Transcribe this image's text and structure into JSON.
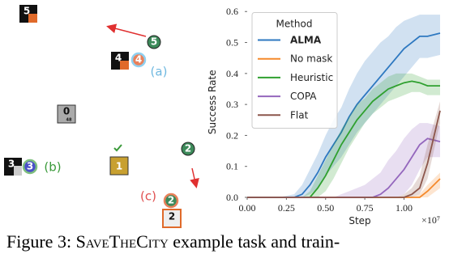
{
  "diagram": {
    "boxes": [
      "5",
      "4",
      "0",
      "48",
      "3",
      "1",
      "2"
    ],
    "agents": [
      "5",
      "4",
      "3",
      "2",
      "2"
    ],
    "labels": [
      "(a)",
      "(b)",
      "(c)"
    ]
  },
  "caption": {
    "prefix": "Figure 3: ",
    "name": "SaveTheCity",
    "rest": " example task and train-"
  },
  "chart_data": {
    "type": "line",
    "xlabel": "Step",
    "ylabel": "Success Rate",
    "x_offset_label": "×10⁷",
    "legend_title": "Method",
    "legend": "upper left",
    "xlim": [
      0,
      1.23
    ],
    "ylim": [
      0,
      0.615
    ],
    "xticks": [
      {
        "value": 0,
        "label": "0.00"
      },
      0.25,
      {
        "value": 0.5,
        "label": "0.50"
      },
      0.75,
      {
        "value": 1,
        "label": "1.00"
      }
    ],
    "yticks": [
      {
        "value": 0,
        "label": "0.0"
      },
      0.1,
      0.2,
      0.3,
      0.4,
      0.5,
      0.6
    ],
    "x": [
      0,
      0.1,
      0.2,
      0.3,
      0.35,
      0.4,
      0.45,
      0.5,
      0.55,
      0.6,
      0.65,
      0.7,
      0.75,
      0.8,
      0.85,
      0.9,
      0.95,
      1.0,
      1.05,
      1.1,
      1.15,
      1.23
    ],
    "series": [
      {
        "name": "ALMA",
        "color": "#2e78c0",
        "bold": true,
        "values": [
          0,
          0,
          0,
          0,
          0.01,
          0.04,
          0.08,
          0.13,
          0.17,
          0.21,
          0.26,
          0.3,
          0.33,
          0.36,
          0.39,
          0.42,
          0.45,
          0.48,
          0.5,
          0.52,
          0.52,
          0.53
        ],
        "upper": [
          0,
          0,
          0,
          0.01,
          0.04,
          0.09,
          0.14,
          0.2,
          0.25,
          0.29,
          0.35,
          0.4,
          0.44,
          0.47,
          0.5,
          0.52,
          0.55,
          0.57,
          0.58,
          0.59,
          0.59,
          0.59
        ],
        "lower": [
          0,
          0,
          0,
          0,
          0,
          0.01,
          0.03,
          0.07,
          0.1,
          0.13,
          0.17,
          0.21,
          0.24,
          0.27,
          0.3,
          0.33,
          0.36,
          0.39,
          0.42,
          0.45,
          0.45,
          0.46
        ]
      },
      {
        "name": "No mask",
        "color": "#f5892a",
        "bold": false,
        "values": [
          0,
          0,
          0,
          0,
          0,
          0,
          0,
          0,
          0,
          0,
          0,
          0,
          0,
          0,
          0,
          0,
          0,
          0,
          0,
          0,
          0.02,
          0.06
        ],
        "upper": [
          0,
          0,
          0,
          0,
          0,
          0,
          0,
          0,
          0,
          0,
          0,
          0,
          0,
          0,
          0,
          0,
          0,
          0,
          0,
          0.01,
          0.04,
          0.08
        ],
        "lower": [
          0,
          0,
          0,
          0,
          0,
          0,
          0,
          0,
          0,
          0,
          0,
          0,
          0,
          0,
          0,
          0,
          0,
          0,
          0,
          0,
          0,
          0.03
        ]
      },
      {
        "name": "Heuristic",
        "color": "#2fa02f",
        "bold": false,
        "values": [
          0,
          0,
          0,
          0,
          0,
          0,
          0.03,
          0.07,
          0.12,
          0.17,
          0.21,
          0.25,
          0.28,
          0.31,
          0.33,
          0.35,
          0.36,
          0.37,
          0.375,
          0.37,
          0.36,
          0.36
        ],
        "upper": [
          0,
          0,
          0,
          0,
          0,
          0.02,
          0.07,
          0.12,
          0.17,
          0.22,
          0.26,
          0.3,
          0.32,
          0.35,
          0.37,
          0.39,
          0.4,
          0.4,
          0.4,
          0.39,
          0.38,
          0.38
        ],
        "lower": [
          0,
          0,
          0,
          0,
          0,
          0,
          0,
          0.02,
          0.06,
          0.11,
          0.16,
          0.2,
          0.24,
          0.27,
          0.29,
          0.31,
          0.32,
          0.33,
          0.34,
          0.34,
          0.33,
          0.33
        ]
      },
      {
        "name": "COPA",
        "color": "#9467bd",
        "bold": false,
        "values": [
          0,
          0,
          0,
          0,
          0,
          0,
          0,
          0,
          0,
          0,
          0,
          0,
          0,
          0,
          0.01,
          0.03,
          0.06,
          0.09,
          0.13,
          0.17,
          0.19,
          0.18
        ],
        "upper": [
          0,
          0,
          0,
          0,
          0,
          0,
          0,
          0,
          0,
          0.01,
          0.02,
          0.03,
          0.04,
          0.06,
          0.08,
          0.12,
          0.15,
          0.19,
          0.22,
          0.24,
          0.24,
          0.23
        ],
        "lower": [
          0,
          0,
          0,
          0,
          0,
          0,
          0,
          0,
          0,
          0,
          0,
          0,
          0,
          0,
          0,
          0,
          0,
          0.01,
          0.04,
          0.09,
          0.13,
          0.13
        ]
      },
      {
        "name": "Flat",
        "color": "#8c564b",
        "bold": false,
        "values": [
          0,
          0,
          0,
          0,
          0,
          0,
          0,
          0,
          0,
          0,
          0,
          0,
          0,
          0,
          0,
          0,
          0,
          0,
          0.01,
          0.03,
          0.11,
          0.28
        ],
        "upper": [
          0,
          0,
          0,
          0,
          0,
          0,
          0,
          0,
          0,
          0,
          0,
          0,
          0,
          0,
          0,
          0,
          0,
          0.01,
          0.03,
          0.07,
          0.17,
          0.31
        ],
        "lower": [
          0,
          0,
          0,
          0,
          0,
          0,
          0,
          0,
          0,
          0,
          0,
          0,
          0,
          0,
          0,
          0,
          0,
          0,
          0,
          0.01,
          0.06,
          0.24
        ]
      }
    ]
  }
}
